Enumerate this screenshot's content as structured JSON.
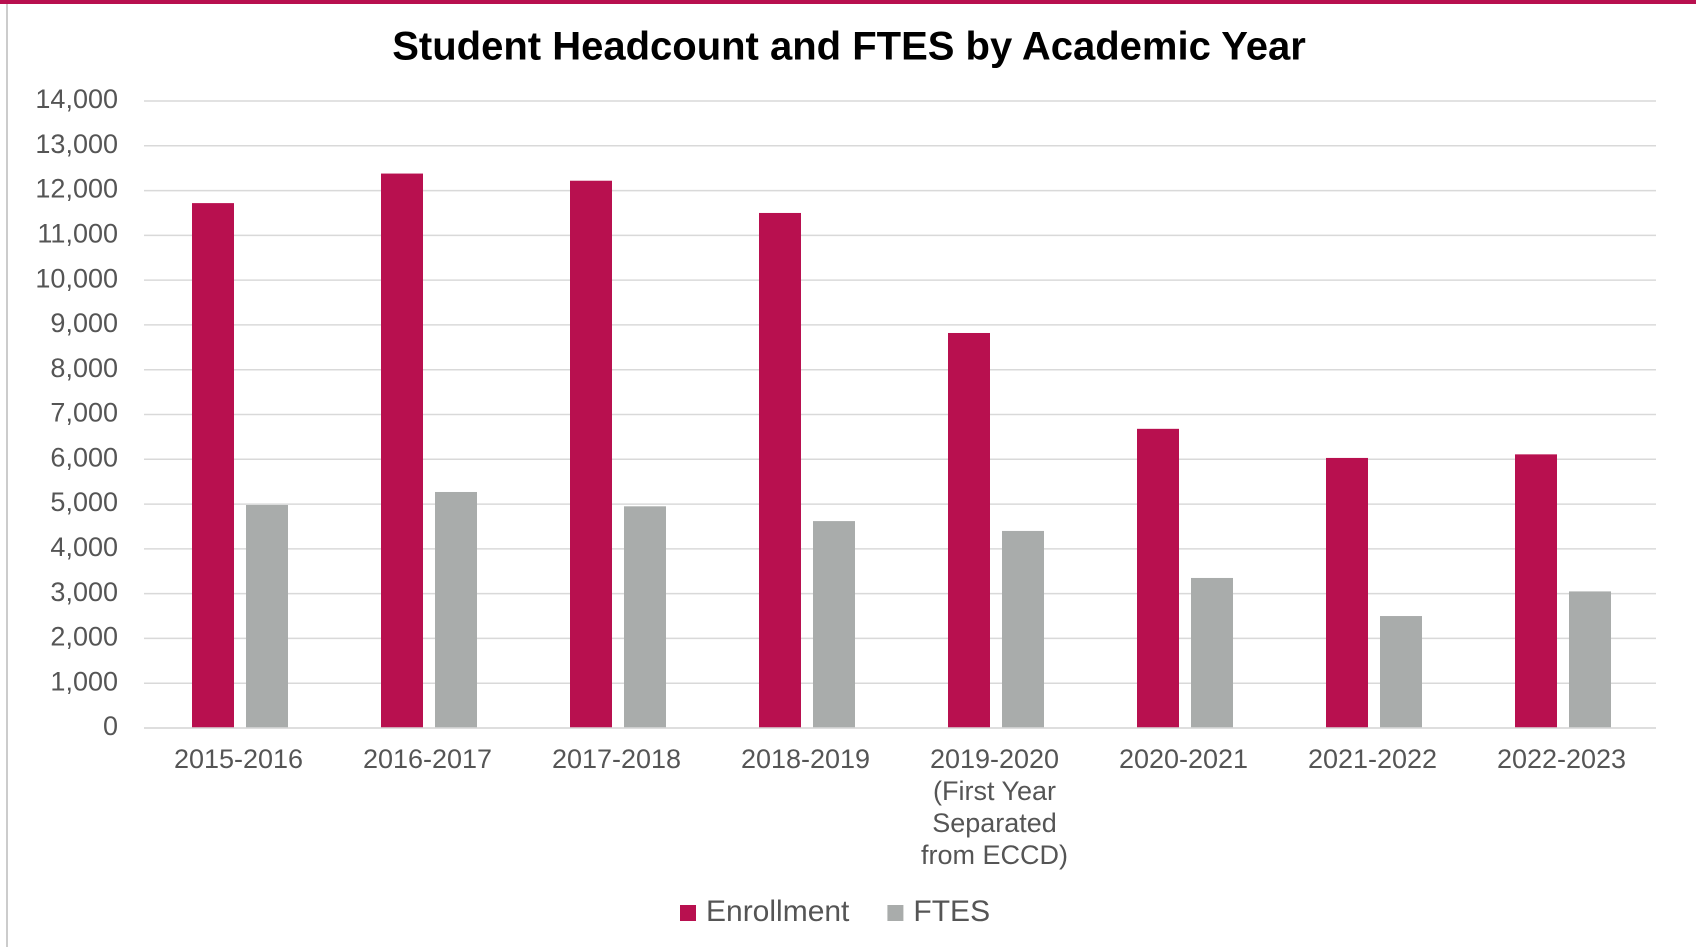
{
  "chart_data": {
    "type": "bar",
    "title": "Student Headcount and FTES by Academic Year",
    "categories": [
      "2015-2016",
      "2016-2017",
      "2017-2018",
      "2018-2019",
      "2019-2020\n(First Year\nSeparated\nfrom ECCD)",
      "2020-2021",
      "2021-2022",
      "2022-2023"
    ],
    "series": [
      {
        "name": "Enrollment",
        "color": "#b8104f",
        "values": [
          11720,
          12380,
          12220,
          11500,
          8820,
          6680,
          6030,
          6110
        ]
      },
      {
        "name": "FTES",
        "color": "#a9acab",
        "values": [
          4980,
          5270,
          4950,
          4620,
          4400,
          3350,
          2500,
          3050
        ]
      }
    ],
    "ylim": [
      0,
      14000
    ],
    "yticks": [
      0,
      {
        "value": 1000,
        "label": "1,000"
      },
      {
        "value": 2000,
        "label": "2,000"
      },
      {
        "value": 3000,
        "label": "3,000"
      },
      {
        "value": 4000,
        "label": "4,000"
      },
      {
        "value": 5000,
        "label": "5,000"
      },
      {
        "value": 6000,
        "label": "6,000"
      },
      {
        "value": 7000,
        "label": "7,000"
      },
      {
        "value": 8000,
        "label": "8,000"
      },
      {
        "value": 9000,
        "label": "9,000"
      },
      {
        "value": 10000,
        "label": "10,000"
      },
      {
        "value": 11000,
        "label": "11,000"
      },
      {
        "value": 12000,
        "label": "12,000"
      },
      {
        "value": 13000,
        "label": "13,000"
      },
      {
        "value": 14000,
        "label": "14,000"
      }
    ],
    "grid": true,
    "legend": "bottom"
  }
}
